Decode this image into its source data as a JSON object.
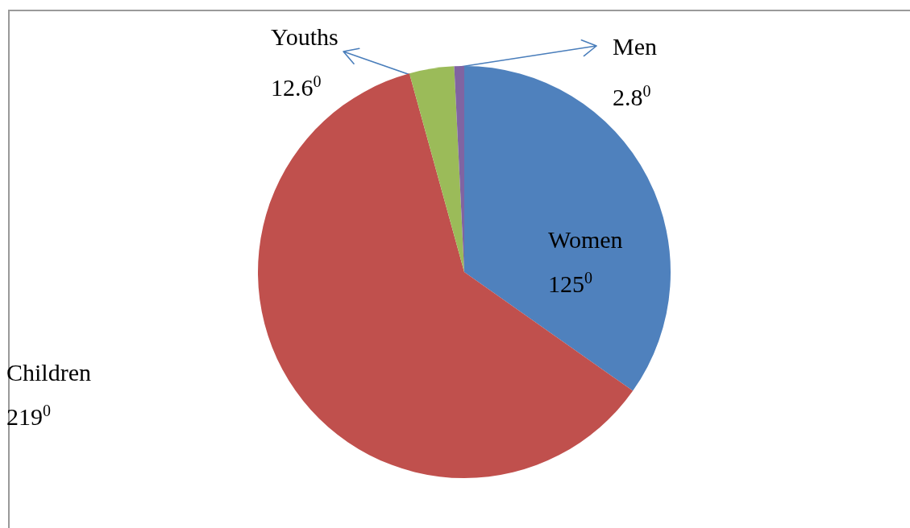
{
  "chart_data": {
    "type": "pie",
    "categories": [
      "Women",
      "Children",
      "Youths",
      "Men"
    ],
    "values": [
      125,
      219,
      12.6,
      2.8
    ],
    "colors": [
      "#4f81bd",
      "#c0504d",
      "#9bbb59",
      "#8064a2"
    ],
    "value_labels": [
      "125$^{0}$",
      "219$^{0}$",
      "12.6$^{0}$",
      "2.8$^{0}$"
    ]
  }
}
